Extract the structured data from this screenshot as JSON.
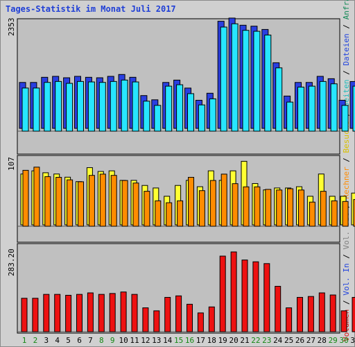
{
  "title": "Tages-Statistik im Monat Juli 2017",
  "colors": {
    "background": "#d0d0d0",
    "plot": "#c0c0c0",
    "title": "#1f3fd6",
    "anfragen": "#2a3fe0",
    "dateien": "#27e6ff",
    "seiten": "#22cccc",
    "besuche": "#ffff33",
    "rechner": "#ff8c00",
    "vol_out": "#808080",
    "vol_in": "#3050e0",
    "volumen": "#ee1111",
    "weekday_label": "#000000",
    "weekend_label": "#118811"
  },
  "legend": [
    {
      "text": "Volumen",
      "color": "#dd1111"
    },
    {
      "text": " / ",
      "color": "#000000"
    },
    {
      "text": "Vol. In",
      "color": "#2244dd"
    },
    {
      "text": " / ",
      "color": "#000000"
    },
    {
      "text": "Vol. Out",
      "color": "#808080"
    },
    {
      "text": " / ",
      "color": "#000000"
    },
    {
      "text": "Rechner",
      "color": "#ff8c00"
    },
    {
      "text": " / ",
      "color": "#000000"
    },
    {
      "text": "Besuche",
      "color": "#d8c000"
    },
    {
      "text": " / ",
      "color": "#000000"
    },
    {
      "text": "Seiten",
      "color": "#22bbbb"
    },
    {
      "text": " / ",
      "color": "#000000"
    },
    {
      "text": "Dateien",
      "color": "#2244dd"
    },
    {
      "text": " / ",
      "color": "#000000"
    },
    {
      "text": "Anfragen",
      "color": "#118855"
    }
  ],
  "chart_data": [
    {
      "type": "bar",
      "panel": "anfragen-dateien-seiten",
      "ymax_label": "2353",
      "ylim": [
        0,
        2353
      ],
      "categories": [
        "1",
        "2",
        "3",
        "4",
        "5",
        "6",
        "7",
        "8",
        "9",
        "10",
        "11",
        "12",
        "13",
        "14",
        "15",
        "16",
        "17",
        "18",
        "19",
        "20",
        "21",
        "22",
        "23",
        "24",
        "25",
        "26",
        "27",
        "28",
        "29",
        "30",
        "31"
      ],
      "weekend_days": [
        "1",
        "2",
        "8",
        "9",
        "15",
        "16",
        "22",
        "23",
        "29",
        "30"
      ],
      "series": [
        {
          "name": "Anfragen",
          "values": [
            980,
            980,
            1090,
            1110,
            1080,
            1110,
            1090,
            1080,
            1110,
            1150,
            1090,
            700,
            610,
            980,
            1030,
            860,
            600,
            750,
            2285,
            2353,
            2200,
            2180,
            2110,
            1400,
            690,
            980,
            980,
            1110,
            1060,
            600,
            1000
          ]
        },
        {
          "name": "Dateien",
          "values": [
            920,
            920,
            1040,
            1060,
            1020,
            1060,
            1050,
            1040,
            1060,
            1090,
            1050,
            640,
            550,
            960,
            990,
            800,
            560,
            690,
            2220,
            2290,
            2150,
            2130,
            2050,
            1350,
            620,
            940,
            960,
            1060,
            1010,
            550,
            960
          ]
        }
      ]
    },
    {
      "type": "bar",
      "panel": "besuche-rechner",
      "ymax_label": "107",
      "ylim": [
        0,
        107
      ],
      "categories": [
        "1",
        "2",
        "3",
        "4",
        "5",
        "6",
        "7",
        "8",
        "9",
        "10",
        "11",
        "12",
        "13",
        "14",
        "15",
        "16",
        "17",
        "18",
        "19",
        "20",
        "21",
        "22",
        "23",
        "24",
        "25",
        "26",
        "27",
        "28",
        "29",
        "30",
        "31"
      ],
      "series": [
        {
          "name": "Besuche",
          "values": [
            80,
            85,
            82,
            80,
            75,
            68,
            90,
            84,
            85,
            70,
            70,
            62,
            58,
            45,
            62,
            70,
            60,
            85,
            70,
            85,
            100,
            65,
            55,
            58,
            58,
            60,
            45,
            80,
            45,
            45,
            50
          ]
        },
        {
          "name": "Rechner",
          "values": [
            88,
            93,
            78,
            77,
            73,
            70,
            80,
            82,
            80,
            72,
            68,
            55,
            40,
            37,
            40,
            77,
            56,
            72,
            82,
            67,
            62,
            62,
            58,
            57,
            59,
            57,
            38,
            55,
            40,
            39,
            42
          ]
        }
      ]
    },
    {
      "type": "bar",
      "panel": "volumen",
      "ymax_label": "283.20",
      "ylim": [
        0,
        283.2
      ],
      "categories": [
        "1",
        "2",
        "3",
        "4",
        "5",
        "6",
        "7",
        "8",
        "9",
        "10",
        "11",
        "12",
        "13",
        "14",
        "15",
        "16",
        "17",
        "18",
        "19",
        "20",
        "21",
        "22",
        "23",
        "24",
        "25",
        "26",
        "27",
        "28",
        "29",
        "30",
        "31"
      ],
      "series": [
        {
          "name": "Volumen",
          "values": [
            112,
            112,
            125,
            125,
            122,
            125,
            130,
            125,
            128,
            133,
            125,
            80,
            70,
            115,
            120,
            92,
            63,
            83,
            253,
            267,
            240,
            234,
            228,
            152,
            80,
            115,
            118,
            130,
            123,
            70,
            115
          ]
        }
      ]
    }
  ]
}
